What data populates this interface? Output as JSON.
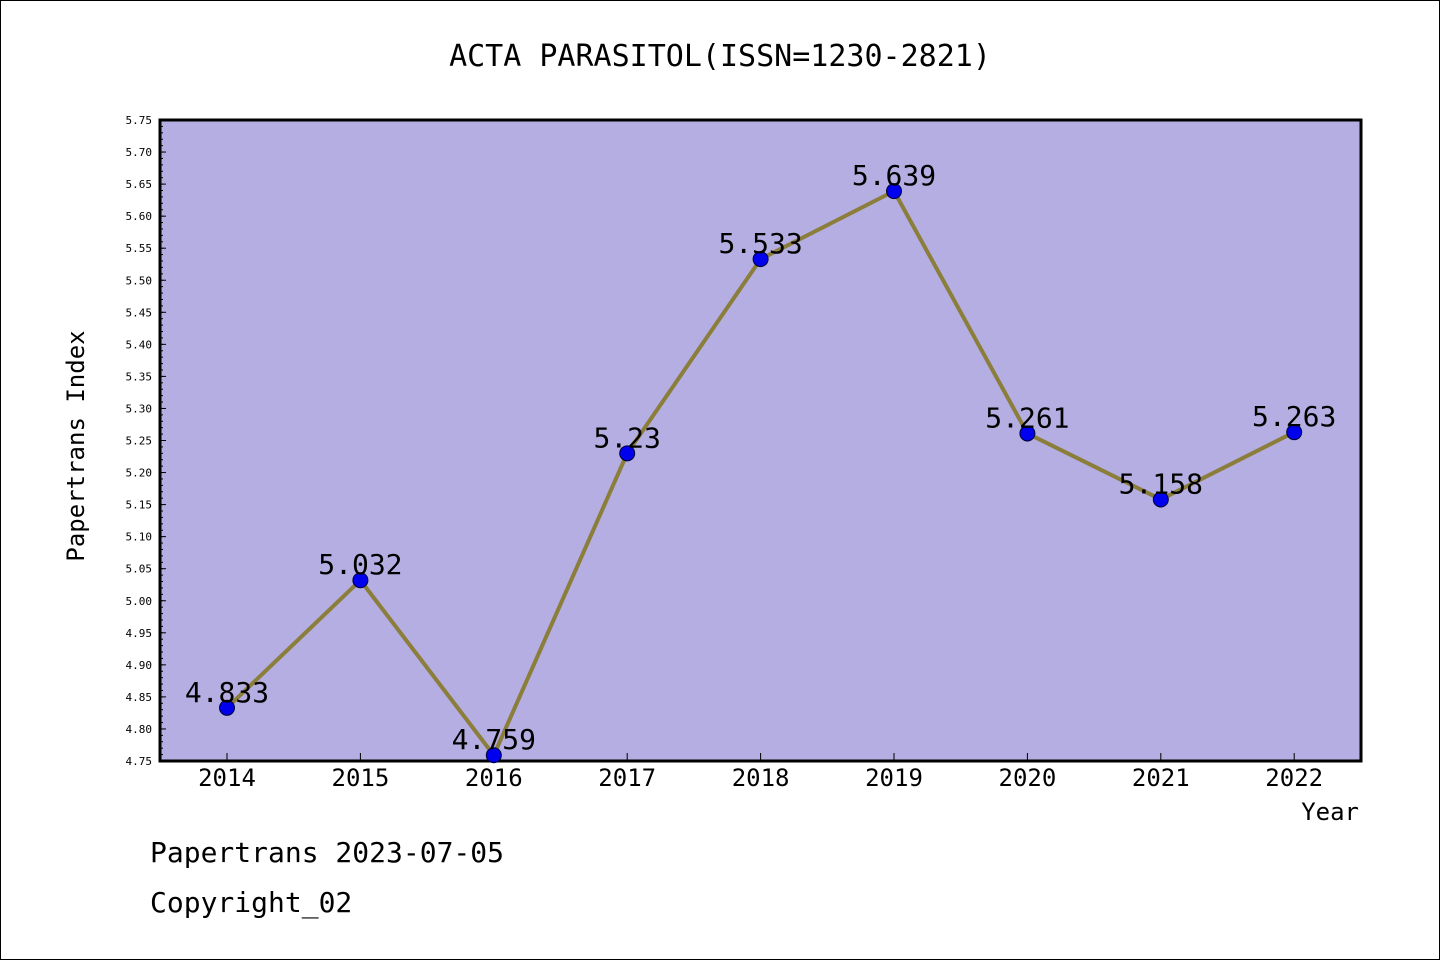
{
  "chart_data": {
    "type": "line",
    "title": "ACTA PARASITOL(ISSN=1230-2821)",
    "xlabel": "Year",
    "ylabel": "Papertrans Index",
    "categories": [
      "2014",
      "2015",
      "2016",
      "2017",
      "2018",
      "2019",
      "2020",
      "2021",
      "2022"
    ],
    "series": [
      {
        "values": [
          4.833,
          5.032,
          4.759,
          5.23,
          5.533,
          5.639,
          5.261,
          5.158,
          5.263
        ],
        "labels": [
          "4.833",
          "5.032",
          "4.759",
          "5.23",
          "5.533",
          "5.639",
          "5.261",
          "5.158",
          "5.263"
        ]
      }
    ],
    "ylim": [
      4.75,
      5.75
    ],
    "yticks": [
      "4.75",
      "4.80",
      "4.85",
      "4.90",
      "4.95",
      "5.00",
      "5.05",
      "5.10",
      "5.15",
      "5.20",
      "5.25",
      "5.30",
      "5.35",
      "5.40",
      "5.45",
      "5.50",
      "5.55",
      "5.60",
      "5.65",
      "5.70",
      "5.75"
    ],
    "grid": false,
    "colors": {
      "plot_background": "#b4aee2",
      "line": "#8b7d3a",
      "marker": "#0000ee"
    }
  },
  "footer": {
    "line1": "Papertrans 2023-07-05",
    "line2": "Copyright_02"
  }
}
